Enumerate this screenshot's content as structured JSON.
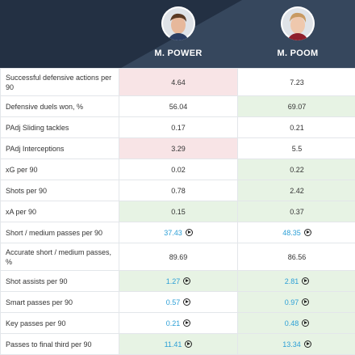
{
  "players": [
    {
      "name": "M. POWER"
    },
    {
      "name": "M. POOM"
    }
  ],
  "colors": {
    "header_bg": "#36475d",
    "link": "#2b9fd6",
    "worse": "#f8e4e6",
    "better": "#e7f3e4"
  },
  "rows": [
    {
      "label": "Successful defensive actions per 90",
      "v1": "4.64",
      "v2": "7.23",
      "link": false
    },
    {
      "label": "Defensive duels won, %",
      "v1": "56.04",
      "v2": "69.07",
      "link": false
    },
    {
      "label": "PAdj Sliding tackles",
      "v1": "0.17",
      "v2": "0.21",
      "link": false
    },
    {
      "label": "PAdj Interceptions",
      "v1": "3.29",
      "v2": "5.5",
      "link": false
    },
    {
      "label": "xG per 90",
      "v1": "0.02",
      "v2": "0.22",
      "link": false
    },
    {
      "label": "Shots per 90",
      "v1": "0.78",
      "v2": "2.42",
      "link": false
    },
    {
      "label": "xA per 90",
      "v1": "0.15",
      "v2": "0.37",
      "link": false
    },
    {
      "label": "Short / medium passes per 90",
      "v1": "37.43",
      "v2": "48.35",
      "link": true
    },
    {
      "label": "Accurate short / medium passes, %",
      "v1": "89.69",
      "v2": "86.56",
      "link": false
    },
    {
      "label": "Shot assists per 90",
      "v1": "1.27",
      "v2": "2.81",
      "link": true
    },
    {
      "label": "Smart passes per 90",
      "v1": "0.57",
      "v2": "0.97",
      "link": true
    },
    {
      "label": "Key passes per 90",
      "v1": "0.21",
      "v2": "0.48",
      "link": true
    },
    {
      "label": "Passes to final third per 90",
      "v1": "11.41",
      "v2": "13.34",
      "link": true
    }
  ]
}
